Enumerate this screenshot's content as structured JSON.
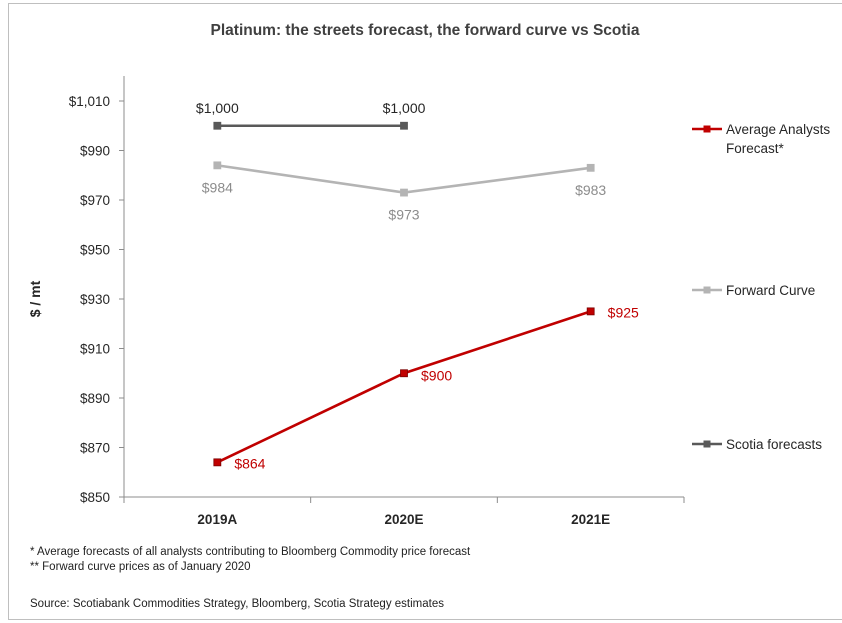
{
  "title": "Platinum: the streets forecast, the forward curve vs Scotia",
  "footnotes": {
    "note1": "* Average forecasts of all analysts contributing to Bloomberg Commodity price forecast",
    "note2": "** Forward curve prices as of January 2020",
    "source": "Source: Scotiabank Commodities Strategy, Bloomberg, Scotia Strategy estimates"
  },
  "chart_data": {
    "type": "line",
    "title": "Platinum: the streets forecast, the forward curve vs Scotia",
    "xlabel": "",
    "ylabel": "$ / mt",
    "ylim": [
      850,
      1010
    ],
    "yticks": [
      850,
      870,
      890,
      910,
      930,
      950,
      970,
      990,
      1010
    ],
    "ytick_labels": [
      "$850",
      "$870",
      "$890",
      "$910",
      "$930",
      "$950",
      "$970",
      "$990",
      "$1,010"
    ],
    "categories": [
      "2019A",
      "2020E",
      "2021E"
    ],
    "grid": false,
    "legend_position": "right",
    "series": [
      {
        "name": "Average Analysts Forecast*",
        "legend_lines": [
          "Average Analysts",
          "Forecast*"
        ],
        "color": "#c00000",
        "values": [
          864,
          900,
          925
        ],
        "labels": [
          "$864",
          "$900",
          "$925"
        ],
        "label_color": "#c00000"
      },
      {
        "name": "Forward Curve",
        "legend_lines": [
          "Forward Curve"
        ],
        "color": "#b4b4b4",
        "values": [
          984,
          973,
          983
        ],
        "labels": [
          "$984",
          "$973",
          "$983"
        ],
        "label_color": "#8c8c8c"
      },
      {
        "name": "Scotia forecasts",
        "legend_lines": [
          "Scotia forecasts"
        ],
        "color": "#595959",
        "values": [
          1000,
          1000,
          null
        ],
        "labels": [
          "$1,000",
          "$1,000",
          null
        ],
        "label_color": "#262626"
      }
    ]
  }
}
